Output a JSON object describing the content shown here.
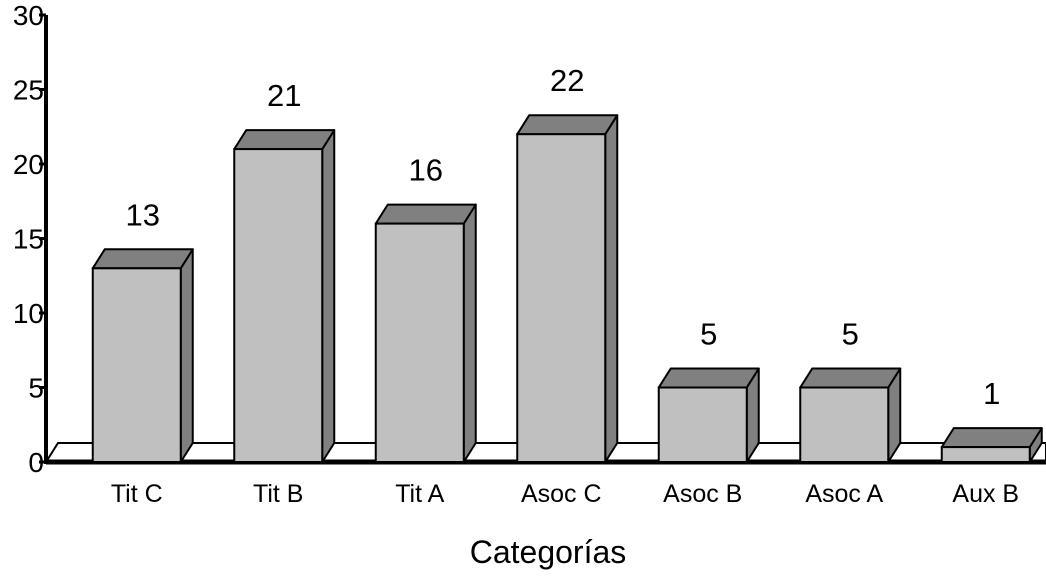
{
  "chart_data": {
    "type": "bar",
    "categories": [
      "Tit C",
      "Tit B",
      "Tit A",
      "Asoc C",
      "Asoc B",
      "Asoc A",
      "Aux B"
    ],
    "values": [
      13,
      21,
      16,
      22,
      5,
      5,
      1
    ],
    "data_labels": [
      "13",
      "21",
      "16",
      "22",
      "5",
      "5",
      "1"
    ],
    "title": "",
    "xlabel": "Categorías",
    "ylabel": "",
    "ylim": [
      0,
      30
    ],
    "yticks": [
      0,
      5,
      10,
      15,
      20,
      25,
      30
    ],
    "grid": false,
    "legend": "none",
    "style": "3d-column",
    "colors": {
      "bar_front": "#c0c0c0",
      "bar_top": "#808080",
      "bar_side": "#808080",
      "outline": "#000000",
      "floor": "#ffffff",
      "floor_edge": "#000000"
    }
  }
}
